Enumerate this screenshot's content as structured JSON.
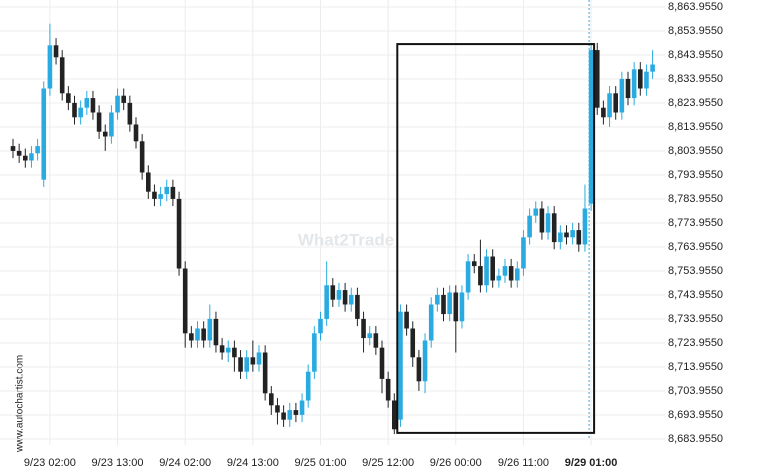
{
  "chart_data": {
    "type": "candlestick",
    "categories": [
      null,
      null,
      null,
      null,
      null,
      null,
      "9/23 02:00",
      null,
      null,
      null,
      null,
      null,
      null,
      null,
      null,
      null,
      null,
      "9/23 13:00",
      null,
      null,
      null,
      null,
      null,
      null,
      null,
      null,
      null,
      null,
      "9/24 02:00",
      null,
      null,
      null,
      null,
      null,
      null,
      null,
      null,
      null,
      null,
      "9/24 13:00",
      null,
      null,
      null,
      null,
      null,
      null,
      null,
      null,
      null,
      null,
      "9/25 01:00",
      null,
      null,
      null,
      null,
      null,
      null,
      null,
      null,
      null,
      null,
      "9/25 12:00",
      null,
      null,
      null,
      null,
      null,
      null,
      null,
      null,
      null,
      null,
      "9/26 00:00",
      null,
      null,
      null,
      null,
      null,
      null,
      null,
      null,
      null,
      null,
      "9/26 11:00",
      null,
      null,
      null,
      null,
      null,
      null,
      null,
      null,
      null,
      null,
      "9/29 01:00",
      null,
      null,
      null,
      null,
      null,
      null,
      null,
      null,
      null,
      null
    ],
    "open": [
      8806,
      8804,
      8802,
      8800,
      8803,
      8792,
      8830,
      8848,
      8843,
      8828,
      8824,
      8818,
      8822,
      8826,
      8820,
      8812,
      8810,
      8820,
      8827,
      8824,
      8815,
      8808,
      8795,
      8787,
      8784,
      8786,
      8789,
      8784,
      8755,
      8728,
      8725,
      8730,
      8725,
      8734,
      8723,
      8720,
      8722,
      8718,
      8712,
      8718,
      8715,
      8720,
      8703,
      8698,
      8695,
      8692,
      8696,
      8694,
      8700,
      8712,
      8728,
      8734,
      8748,
      8742,
      8746,
      8740,
      8744,
      8734,
      8726,
      8728,
      8722,
      8709,
      8700,
      8692,
      8737,
      8730,
      8718,
      8708,
      8725,
      8740,
      8744,
      8736,
      8745,
      8733,
      8745,
      8758,
      8756,
      8748,
      8760,
      8750,
      8752,
      8756,
      8750,
      8755,
      8768,
      8777,
      8780,
      8770,
      8778,
      8766,
      8770,
      8768,
      8771,
      8765,
      8782,
      8846,
      8822,
      8818,
      8828,
      8820,
      8834,
      8826,
      8838,
      8830,
      8837
    ],
    "high": [
      8809,
      8807,
      8805,
      8806,
      8809,
      8833,
      8857,
      8851,
      8846,
      8831,
      8827,
      8825,
      8829,
      8829,
      8823,
      8815,
      8823,
      8830,
      8830,
      8827,
      8818,
      8811,
      8798,
      8790,
      8789,
      8792,
      8792,
      8787,
      8758,
      8731,
      8733,
      8733,
      8740,
      8737,
      8726,
      8725,
      8725,
      8721,
      8721,
      8725,
      8723,
      8723,
      8706,
      8701,
      8698,
      8699,
      8699,
      8703,
      8715,
      8731,
      8737,
      8758,
      8751,
      8749,
      8749,
      8747,
      8747,
      8737,
      8731,
      8731,
      8725,
      8712,
      8703,
      8740,
      8740,
      8733,
      8721,
      8728,
      8743,
      8747,
      8747,
      8748,
      8748,
      8748,
      8761,
      8761,
      8767,
      8763,
      8763,
      8755,
      8759,
      8759,
      8758,
      8771,
      8780,
      8783,
      8783,
      8781,
      8781,
      8773,
      8773,
      8774,
      8774,
      8790,
      8849,
      8849,
      8825,
      8831,
      8831,
      8837,
      8837,
      8841,
      8841,
      8840,
      8846
    ],
    "low": [
      8801,
      8799,
      8797,
      8797,
      8800,
      8789,
      8827,
      8840,
      8825,
      8821,
      8815,
      8815,
      8819,
      8817,
      8809,
      8804,
      8807,
      8817,
      8821,
      8812,
      8805,
      8792,
      8784,
      8781,
      8781,
      8783,
      8781,
      8752,
      8722,
      8722,
      8722,
      8722,
      8722,
      8720,
      8717,
      8716,
      8712,
      8709,
      8709,
      8712,
      8712,
      8700,
      8694,
      8690,
      8689,
      8689,
      8691,
      8691,
      8697,
      8709,
      8725,
      8731,
      8739,
      8739,
      8737,
      8737,
      8731,
      8720,
      8723,
      8719,
      8703,
      8697,
      8686,
      8689,
      8727,
      8714,
      8704,
      8703,
      8722,
      8737,
      8733,
      8733,
      8720,
      8730,
      8742,
      8753,
      8745,
      8745,
      8747,
      8747,
      8749,
      8747,
      8747,
      8752,
      8765,
      8774,
      8767,
      8767,
      8763,
      8763,
      8765,
      8765,
      8762,
      8762,
      8779,
      8819,
      8815,
      8814,
      8817,
      8817,
      8823,
      8823,
      8827,
      8827,
      8834
    ],
    "close": [
      8804,
      8802,
      8800,
      8803,
      8806,
      8830,
      8848,
      8843,
      8828,
      8824,
      8818,
      8822,
      8826,
      8820,
      8812,
      8810,
      8820,
      8827,
      8824,
      8815,
      8808,
      8795,
      8787,
      8784,
      8786,
      8789,
      8784,
      8755,
      8728,
      8725,
      8730,
      8725,
      8734,
      8723,
      8720,
      8722,
      8718,
      8712,
      8718,
      8715,
      8720,
      8703,
      8698,
      8695,
      8692,
      8696,
      8694,
      8700,
      8712,
      8728,
      8734,
      8748,
      8742,
      8746,
      8740,
      8744,
      8734,
      8726,
      8728,
      8722,
      8709,
      8700,
      8688,
      8737,
      8730,
      8718,
      8708,
      8725,
      8740,
      8744,
      8736,
      8745,
      8733,
      8745,
      8758,
      8756,
      8748,
      8760,
      8750,
      8752,
      8756,
      8750,
      8755,
      8768,
      8777,
      8780,
      8770,
      8778,
      8766,
      8770,
      8768,
      8771,
      8765,
      8780,
      8846,
      8822,
      8818,
      8828,
      8820,
      8834,
      8826,
      8838,
      8830,
      8837,
      8840
    ],
    "up_color": "#29abe2",
    "down_color": "#222222",
    "ylim": [
      8683.955,
      8863.955
    ],
    "yticks": [
      {
        "value": 8683.955,
        "label": "8,683.9550"
      },
      {
        "value": 8693.955,
        "label": "8,693.9550"
      },
      {
        "value": 8703.955,
        "label": "8,703.9550"
      },
      {
        "value": 8713.955,
        "label": "8,713.9550"
      },
      {
        "value": 8723.955,
        "label": "8,723.9550"
      },
      {
        "value": 8733.955,
        "label": "8,733.9550"
      },
      {
        "value": 8743.955,
        "label": "8,743.9550"
      },
      {
        "value": 8753.955,
        "label": "8,753.9550"
      },
      {
        "value": 8763.955,
        "label": "8,763.9550"
      },
      {
        "value": 8773.955,
        "label": "8,773.9550"
      },
      {
        "value": 8783.955,
        "label": "8,783.9550"
      },
      {
        "value": 8793.955,
        "label": "8,793.9550"
      },
      {
        "value": 8803.955,
        "label": "8,803.9550"
      },
      {
        "value": 8813.955,
        "label": "8,813.9550"
      },
      {
        "value": 8823.955,
        "label": "8,823.9550"
      },
      {
        "value": 8833.955,
        "label": "8,833.9550"
      },
      {
        "value": 8843.955,
        "label": "8,843.9550"
      },
      {
        "value": 8853.955,
        "label": "8,853.9550"
      },
      {
        "value": 8863.955,
        "label": "8,863.9550"
      }
    ],
    "grid": true,
    "range_box": {
      "start": 62,
      "end": 94,
      "low": 8686.5,
      "high": 8848.5
    },
    "watermark": "What2Trade",
    "source": "www.autochartist.com"
  }
}
